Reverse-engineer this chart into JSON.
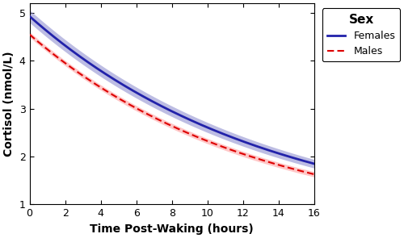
{
  "xlabel": "Time Post-Waking (hours)",
  "ylabel": "Cortisol (nmol/L)",
  "legend_title": "Sex",
  "legend_entries": [
    "Females",
    "Males"
  ],
  "female_color": "#2222AA",
  "male_color": "#DD0000",
  "female_ci_color": "#8888CC",
  "male_ci_color": "#FF9999",
  "ci_alpha_female": 0.55,
  "ci_alpha_male": 0.55,
  "xlim": [
    0,
    16
  ],
  "ylim": [
    1.0,
    5.2
  ],
  "xticks": [
    0,
    2,
    4,
    6,
    8,
    10,
    12,
    14,
    16
  ],
  "yticks": [
    1.0,
    2.0,
    3.0,
    4.0,
    5.0
  ],
  "female_start": 4.93,
  "female_end": 1.85,
  "male_start": 4.55,
  "male_end": 1.63,
  "floor": 0.5,
  "female_ci_width_start": 0.13,
  "female_ci_width_end": 0.09,
  "male_ci_width_start": 0.055,
  "male_ci_width_end": 0.055,
  "background_color": "#ffffff",
  "figsize": [
    5.0,
    2.95
  ],
  "dpi": 100
}
